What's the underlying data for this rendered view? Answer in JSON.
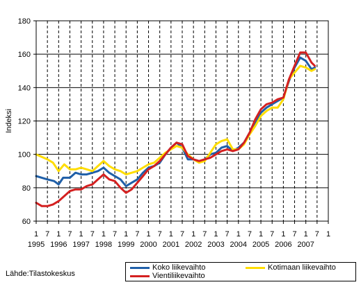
{
  "chart_data": {
    "type": "line",
    "ylabel": "Indeksi",
    "ylim": [
      60,
      180
    ],
    "yticks": [
      60,
      80,
      100,
      120,
      140,
      160,
      180
    ],
    "xlim": [
      1995.0,
      2008.0
    ],
    "x_tick_labels": [
      "1",
      "7",
      "1",
      "7",
      "1",
      "7",
      "1",
      "7",
      "1",
      "7",
      "1",
      "7",
      "1",
      "7",
      "1",
      "7",
      "1",
      "7",
      "1",
      "7",
      "1",
      "7",
      "1",
      "7",
      "1",
      "7",
      "1"
    ],
    "year_labels": [
      "1995",
      "1996",
      "1997",
      "1998",
      "1999",
      "2000",
      "2001",
      "2002",
      "2003",
      "2004",
      "2005",
      "2006",
      "2007"
    ],
    "grid": true,
    "legend_position": "bottom-right",
    "series": [
      {
        "name": "Koko liikevaihto",
        "color": "#1f5fa8",
        "points": [
          [
            1995.0,
            87
          ],
          [
            1995.5,
            85
          ],
          [
            1995.8,
            84
          ],
          [
            1996.0,
            82
          ],
          [
            1996.2,
            86
          ],
          [
            1996.5,
            86
          ],
          [
            1996.75,
            89
          ],
          [
            1997.0,
            88
          ],
          [
            1997.25,
            88
          ],
          [
            1997.5,
            89
          ],
          [
            1997.75,
            90
          ],
          [
            1998.0,
            92
          ],
          [
            1998.25,
            89
          ],
          [
            1998.5,
            87
          ],
          [
            1998.75,
            85
          ],
          [
            1999.0,
            81
          ],
          [
            1999.25,
            83
          ],
          [
            1999.5,
            85
          ],
          [
            1999.75,
            89
          ],
          [
            2000.0,
            92
          ],
          [
            2000.25,
            93
          ],
          [
            2000.5,
            95
          ],
          [
            2000.75,
            100
          ],
          [
            2001.0,
            104
          ],
          [
            2001.25,
            107
          ],
          [
            2001.5,
            104
          ],
          [
            2001.75,
            97
          ],
          [
            2002.0,
            97
          ],
          [
            2002.25,
            96
          ],
          [
            2002.5,
            97
          ],
          [
            2002.75,
            100
          ],
          [
            2003.0,
            101
          ],
          [
            2003.25,
            104
          ],
          [
            2003.5,
            105
          ],
          [
            2003.75,
            102
          ],
          [
            2004.0,
            104
          ],
          [
            2004.25,
            107
          ],
          [
            2004.5,
            113
          ],
          [
            2004.75,
            119
          ],
          [
            2005.0,
            125
          ],
          [
            2005.25,
            128
          ],
          [
            2005.5,
            130
          ],
          [
            2005.75,
            132
          ],
          [
            2006.0,
            134
          ],
          [
            2006.25,
            144
          ],
          [
            2006.5,
            152
          ],
          [
            2006.75,
            158
          ],
          [
            2007.0,
            156
          ],
          [
            2007.25,
            151
          ],
          [
            2007.4,
            152
          ]
        ]
      },
      {
        "name": "Kotimaan liikevaihto",
        "color": "#ffdd00",
        "points": [
          [
            1995.0,
            100
          ],
          [
            1995.5,
            97
          ],
          [
            1995.75,
            95
          ],
          [
            1996.0,
            90
          ],
          [
            1996.25,
            94
          ],
          [
            1996.5,
            91
          ],
          [
            1996.75,
            91
          ],
          [
            1997.0,
            92
          ],
          [
            1997.25,
            91
          ],
          [
            1997.5,
            90
          ],
          [
            1997.75,
            93
          ],
          [
            1998.0,
            96
          ],
          [
            1998.25,
            93
          ],
          [
            1998.5,
            91
          ],
          [
            1998.75,
            90
          ],
          [
            1999.0,
            88
          ],
          [
            1999.25,
            89
          ],
          [
            1999.5,
            90
          ],
          [
            1999.75,
            92
          ],
          [
            2000.0,
            94
          ],
          [
            2000.25,
            95
          ],
          [
            2000.5,
            98
          ],
          [
            2000.75,
            101
          ],
          [
            2001.0,
            103
          ],
          [
            2001.25,
            105
          ],
          [
            2001.5,
            104
          ],
          [
            2001.75,
            100
          ],
          [
            2002.0,
            97
          ],
          [
            2002.25,
            95
          ],
          [
            2002.5,
            96
          ],
          [
            2002.75,
            101
          ],
          [
            2003.0,
            106
          ],
          [
            2003.25,
            108
          ],
          [
            2003.5,
            109
          ],
          [
            2003.75,
            103
          ],
          [
            2004.0,
            103
          ],
          [
            2004.25,
            106
          ],
          [
            2004.5,
            112
          ],
          [
            2004.75,
            117
          ],
          [
            2005.0,
            123
          ],
          [
            2005.25,
            126
          ],
          [
            2005.5,
            128
          ],
          [
            2005.75,
            128
          ],
          [
            2006.0,
            133
          ],
          [
            2006.25,
            145
          ],
          [
            2006.5,
            149
          ],
          [
            2006.75,
            153
          ],
          [
            2007.0,
            152
          ],
          [
            2007.25,
            150
          ],
          [
            2007.4,
            151
          ]
        ]
      },
      {
        "name": "Vientiliikevaihto",
        "color": "#d42020",
        "points": [
          [
            1995.0,
            71
          ],
          [
            1995.25,
            69
          ],
          [
            1995.5,
            69
          ],
          [
            1995.75,
            70
          ],
          [
            1996.0,
            72
          ],
          [
            1996.25,
            75
          ],
          [
            1996.5,
            78
          ],
          [
            1996.75,
            79
          ],
          [
            1997.0,
            79
          ],
          [
            1997.25,
            81
          ],
          [
            1997.5,
            82
          ],
          [
            1997.75,
            85
          ],
          [
            1998.0,
            88
          ],
          [
            1998.25,
            85
          ],
          [
            1998.5,
            84
          ],
          [
            1998.75,
            80
          ],
          [
            1999.0,
            77
          ],
          [
            1999.25,
            79
          ],
          [
            1999.5,
            83
          ],
          [
            1999.75,
            87
          ],
          [
            2000.0,
            91
          ],
          [
            2000.25,
            93
          ],
          [
            2000.5,
            96
          ],
          [
            2000.75,
            100
          ],
          [
            2001.0,
            104
          ],
          [
            2001.25,
            107
          ],
          [
            2001.5,
            106
          ],
          [
            2001.75,
            99
          ],
          [
            2002.0,
            97
          ],
          [
            2002.25,
            96
          ],
          [
            2002.5,
            97
          ],
          [
            2002.75,
            98
          ],
          [
            2003.0,
            100
          ],
          [
            2003.25,
            102
          ],
          [
            2003.5,
            103
          ],
          [
            2003.75,
            102
          ],
          [
            2004.0,
            103
          ],
          [
            2004.25,
            107
          ],
          [
            2004.5,
            113
          ],
          [
            2004.75,
            121
          ],
          [
            2005.0,
            127
          ],
          [
            2005.25,
            130
          ],
          [
            2005.5,
            131
          ],
          [
            2005.75,
            133
          ],
          [
            2006.0,
            134
          ],
          [
            2006.25,
            145
          ],
          [
            2006.5,
            153
          ],
          [
            2006.75,
            161
          ],
          [
            2007.0,
            161
          ],
          [
            2007.25,
            155
          ],
          [
            2007.4,
            153
          ]
        ]
      }
    ]
  },
  "source_text": "Lähde:Tilastokeskus"
}
